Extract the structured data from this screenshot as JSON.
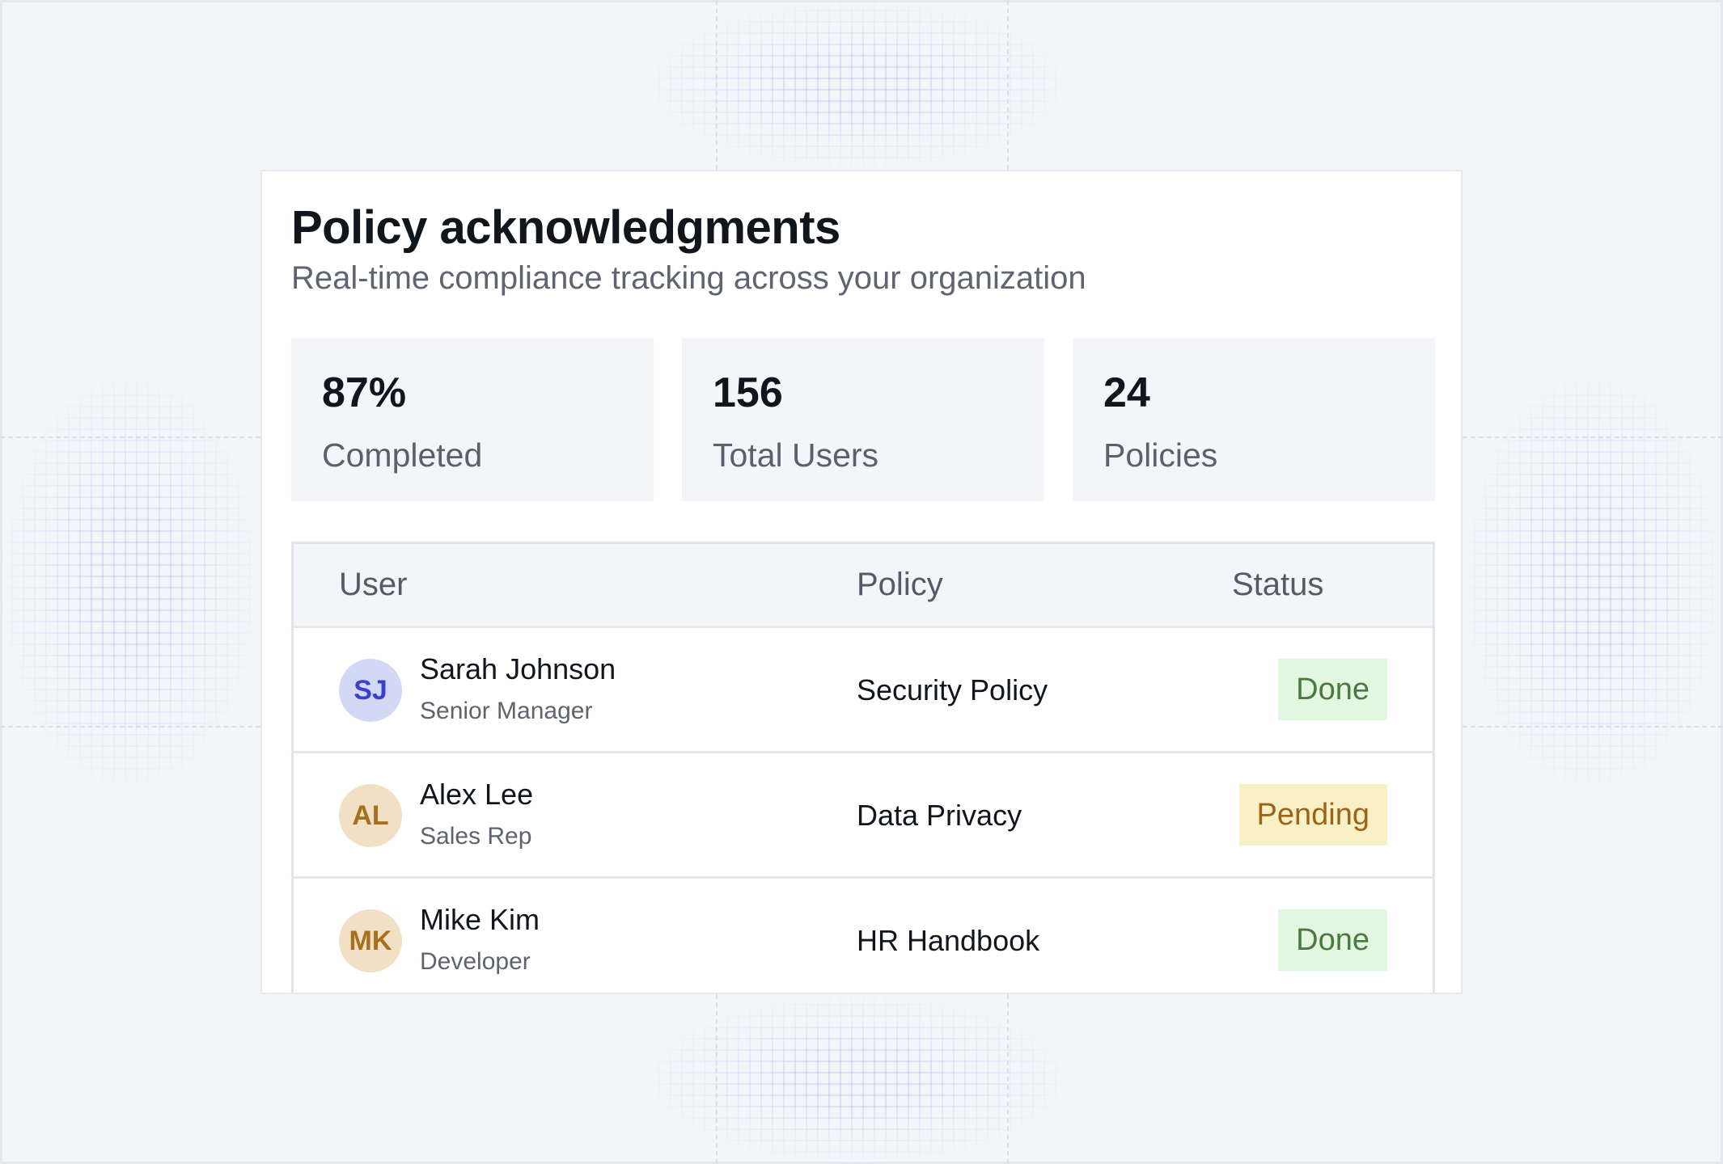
{
  "header": {
    "title": "Policy acknowledgments",
    "subtitle": "Real-time compliance tracking across your organization"
  },
  "stats": [
    {
      "value": "87%",
      "label": "Completed"
    },
    {
      "value": "156",
      "label": "Total Users"
    },
    {
      "value": "24",
      "label": "Policies"
    }
  ],
  "table": {
    "columns": [
      "User",
      "Policy",
      "Status"
    ],
    "rows": [
      {
        "initials": "SJ",
        "name": "Sarah Johnson",
        "role": "Senior Manager",
        "policy": "Security Policy",
        "status": "Done"
      },
      {
        "initials": "AL",
        "name": "Alex Lee",
        "role": "Sales Rep",
        "policy": "Data Privacy",
        "status": "Pending"
      },
      {
        "initials": "MK",
        "name": "Mike Kim",
        "role": "Developer",
        "policy": "HR Handbook",
        "status": "Done"
      }
    ]
  },
  "colors": {
    "avatar_blue_bg": "#d3d9f4",
    "avatar_blue_fg": "#3a3fd0",
    "avatar_tan_bg": "#f2e0c6",
    "avatar_tan_fg": "#a7701c",
    "done_bg": "#e3f6e2",
    "done_fg": "#4a7a3e",
    "pending_bg": "#faf0c6",
    "pending_fg": "#9c6418"
  }
}
